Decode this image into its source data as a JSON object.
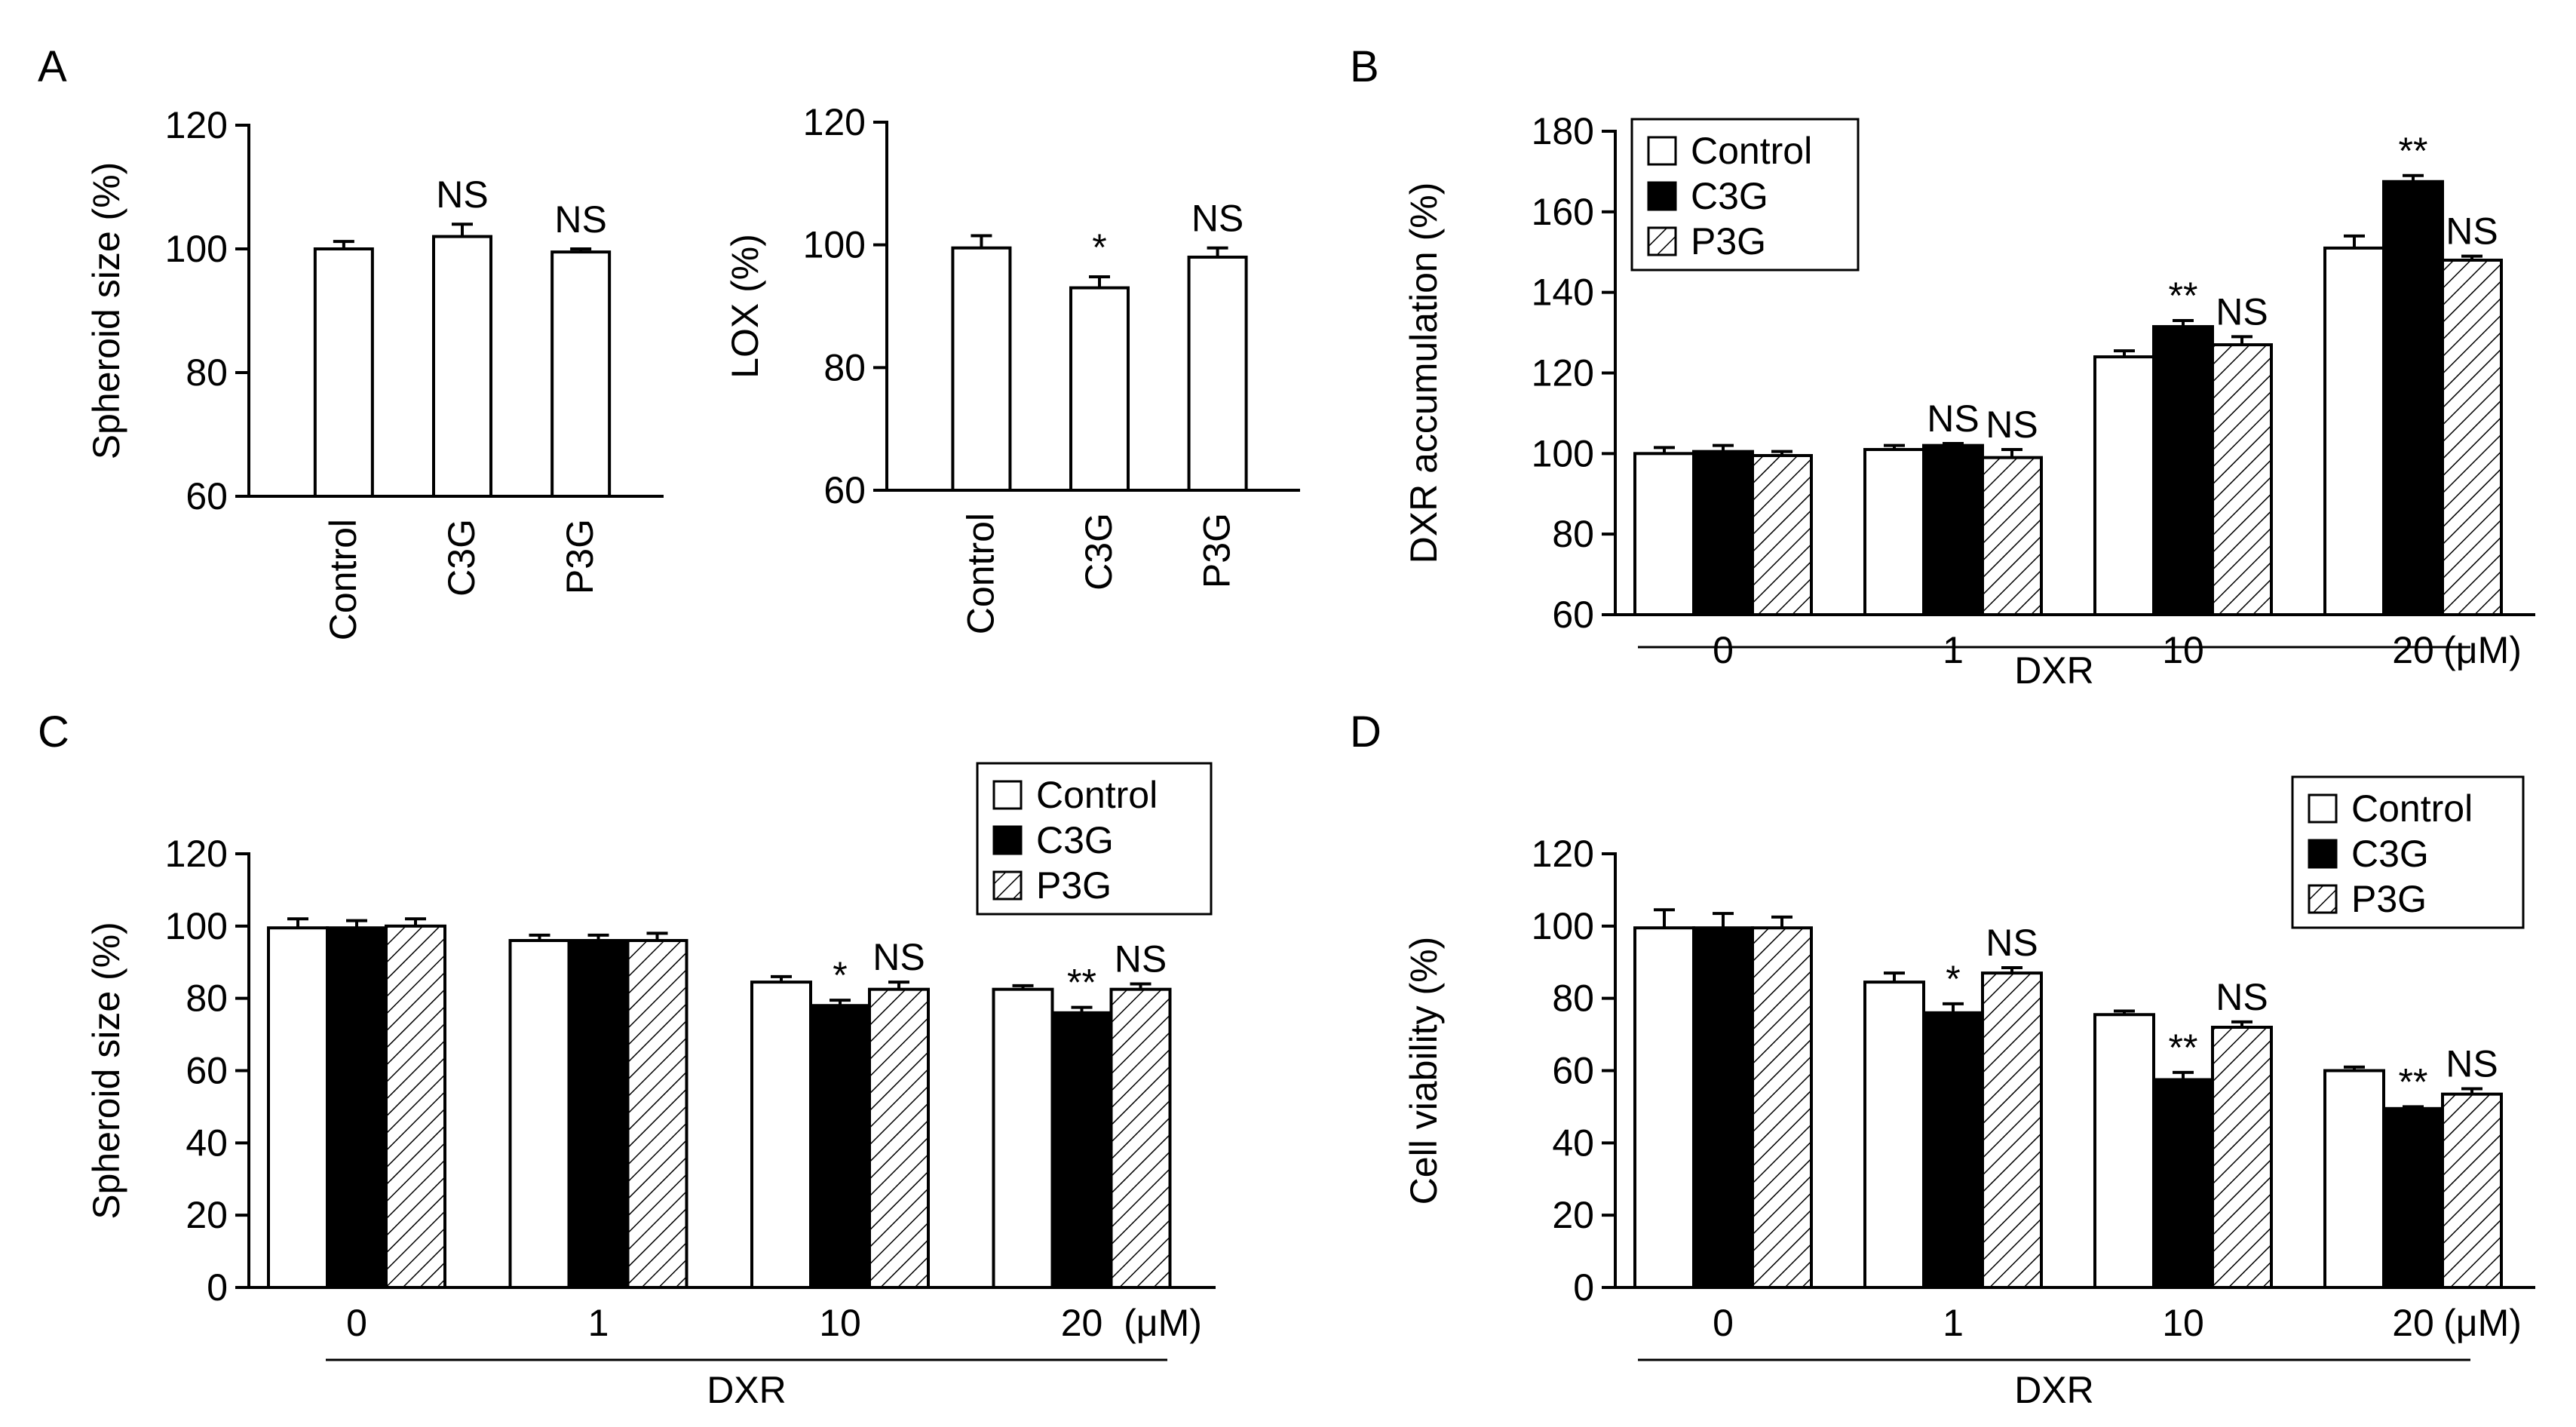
{
  "figure": {
    "colors": {
      "control": "#ffffff",
      "c3g": "#000000",
      "p3g_hatch": "#000000",
      "axis": "#000000"
    }
  },
  "chart_data": [
    {
      "panel": "A",
      "type": "bar",
      "title": "",
      "ylabel": "Spheroid size (%)",
      "xlabel": "",
      "ylim": [
        60,
        120
      ],
      "yticks": [
        60,
        80,
        100,
        120
      ],
      "categories": [
        "Control",
        "C3G",
        "P3G"
      ],
      "series": [
        {
          "name": "",
          "values": [
            100,
            102,
            99.5
          ],
          "errors": [
            1.2,
            2,
            0.5
          ],
          "styles": [
            "white",
            "white",
            "white"
          ]
        }
      ],
      "annotations": [
        "",
        "NS",
        "NS"
      ]
    },
    {
      "panel": "",
      "type": "bar",
      "title": "",
      "ylabel": "LOX (%)",
      "xlabel": "",
      "ylim": [
        60,
        120
      ],
      "yticks": [
        60,
        80,
        100,
        120
      ],
      "categories": [
        "Control",
        "C3G",
        "P3G"
      ],
      "series": [
        {
          "name": "",
          "values": [
            99.5,
            93,
            98
          ],
          "errors": [
            2,
            1.8,
            1.5
          ],
          "styles": [
            "white",
            "white",
            "white"
          ]
        }
      ],
      "annotations": [
        "",
        "*",
        "NS"
      ]
    },
    {
      "panel": "B",
      "type": "bar",
      "title": "",
      "ylabel": "DXR accumulation  (%)",
      "xlabel": "DXR",
      "unit": "(μM)",
      "ylim": [
        60,
        180
      ],
      "yticks": [
        60,
        80,
        100,
        120,
        140,
        160,
        180
      ],
      "categories": [
        "0",
        "1",
        "10",
        "20"
      ],
      "legend": [
        "Control",
        "C3G",
        "P3G"
      ],
      "series": [
        {
          "name": "Control",
          "values": [
            100,
            101,
            124,
            151
          ],
          "errors": [
            1.5,
            1,
            1.5,
            3
          ]
        },
        {
          "name": "C3G",
          "values": [
            100.5,
            102,
            131.5,
            167.5
          ],
          "errors": [
            1.5,
            0.5,
            1.5,
            1.5
          ]
        },
        {
          "name": "P3G",
          "values": [
            99.5,
            99,
            127,
            148
          ],
          "errors": [
            1,
            2,
            2,
            1
          ]
        }
      ],
      "annotations": [
        [
          "",
          "",
          ""
        ],
        [
          "",
          "NS",
          "NS"
        ],
        [
          "",
          "**",
          "NS"
        ],
        [
          "",
          "**",
          "NS"
        ]
      ]
    },
    {
      "panel": "C",
      "type": "bar",
      "title": "",
      "ylabel": "Spheroid size  (%)",
      "xlabel": "DXR",
      "unit": "(μM)",
      "ylim": [
        0,
        120
      ],
      "yticks": [
        0,
        20,
        40,
        60,
        80,
        100,
        120
      ],
      "categories": [
        "0",
        "1",
        "10",
        "20"
      ],
      "legend": [
        "Control",
        "C3G",
        "P3G"
      ],
      "series": [
        {
          "name": "Control",
          "values": [
            99.5,
            96,
            84.5,
            82.5
          ],
          "errors": [
            2.5,
            1.5,
            1.5,
            1
          ]
        },
        {
          "name": "C3G",
          "values": [
            99.5,
            96,
            78,
            76
          ],
          "errors": [
            2,
            1.5,
            1.5,
            1.5
          ]
        },
        {
          "name": "P3G",
          "values": [
            100,
            96,
            82.5,
            82.5
          ],
          "errors": [
            2,
            2,
            2,
            1.5
          ]
        }
      ],
      "annotations": [
        [
          "",
          "",
          ""
        ],
        [
          "",
          "",
          ""
        ],
        [
          "",
          "*",
          "NS"
        ],
        [
          "",
          "**",
          "NS"
        ]
      ]
    },
    {
      "panel": "D",
      "type": "bar",
      "title": "",
      "ylabel": "Cell viability  (%)",
      "xlabel": "DXR",
      "unit": "(μM)",
      "ylim": [
        0,
        120
      ],
      "yticks": [
        0,
        20,
        40,
        60,
        80,
        100,
        120
      ],
      "categories": [
        "0",
        "1",
        "10",
        "20"
      ],
      "legend": [
        "Control",
        "C3G",
        "P3G"
      ],
      "series": [
        {
          "name": "Control",
          "values": [
            99.5,
            84.5,
            75.5,
            60
          ],
          "errors": [
            5,
            2.5,
            1,
            1
          ]
        },
        {
          "name": "C3G",
          "values": [
            99.5,
            76,
            57.5,
            49.5
          ],
          "errors": [
            4,
            2.5,
            2,
            0.5
          ]
        },
        {
          "name": "P3G",
          "values": [
            99.5,
            87,
            72,
            53.5
          ],
          "errors": [
            3,
            1.5,
            1.5,
            1.5
          ]
        }
      ],
      "annotations": [
        [
          "",
          "",
          ""
        ],
        [
          "",
          "*",
          "NS"
        ],
        [
          "",
          "**",
          "NS"
        ],
        [
          "",
          "**",
          "NS"
        ]
      ]
    }
  ]
}
